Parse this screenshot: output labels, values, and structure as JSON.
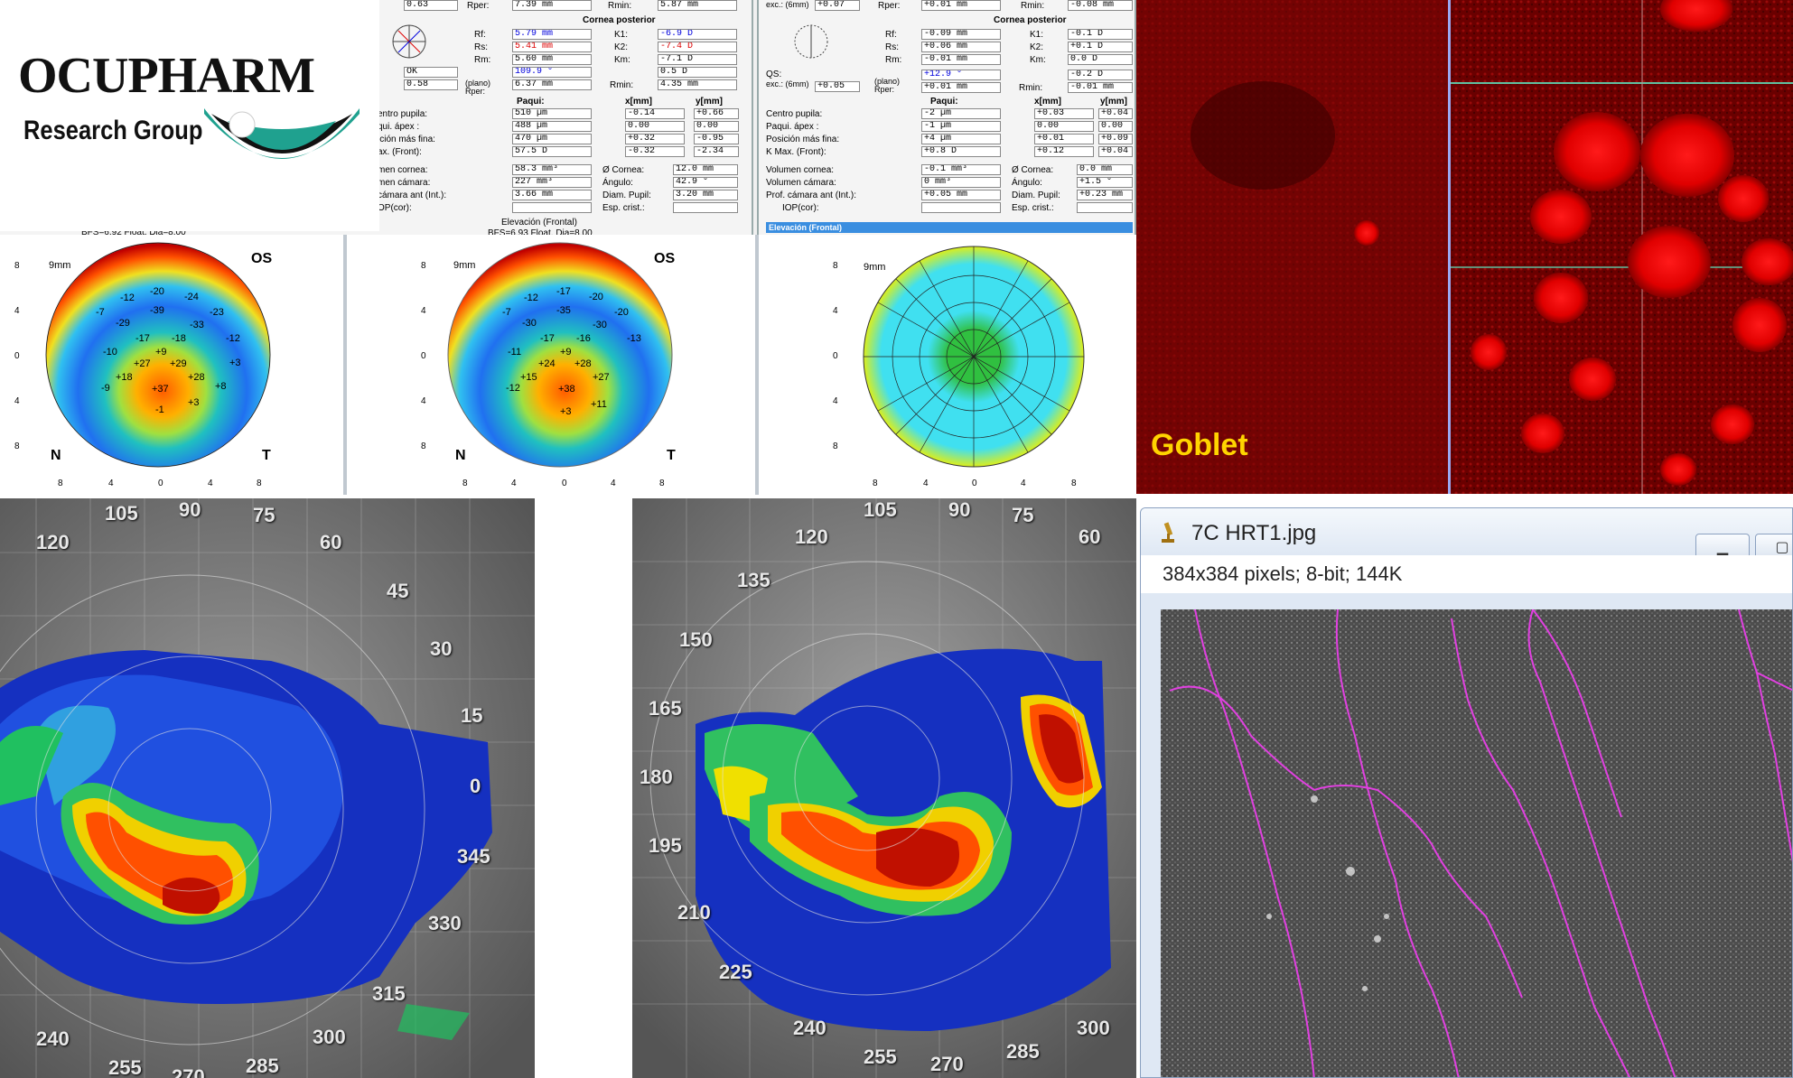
{
  "logo": {
    "name": "OCUPHARM",
    "subtitle": "Research Group"
  },
  "topo": {
    "panel1": {
      "rows_top": [
        [
          "0.63",
          "Rper:",
          "7.39 mm",
          "Rmin:",
          "5.87 mm"
        ]
      ],
      "section": "Cornea posterior",
      "rows": [
        [
          "Rf:",
          "5.79 mm",
          "K1:",
          "-6.9 D"
        ],
        [
          "Rs:",
          "5.41 mm",
          "K2:",
          "-7.4 D"
        ],
        [
          "Rm:",
          "5.60 mm",
          "Km:",
          "-7.1 D"
        ],
        [
          "",
          "OK",
          "",
          ""
        ],
        [
          "",
          "109.9 °",
          "",
          "0.5 D"
        ],
        [
          "(plano) Rper:",
          "6.37 mm",
          "Rmin:",
          "4.35 mm"
        ]
      ],
      "qs_label": "0.58",
      "paqui_hdr": "Paqui:",
      "x_hdr": "x[mm]",
      "y_hdr": "y[mm]",
      "paqui_rows": [
        [
          "entro pupila:",
          "510 µm",
          "-0.14",
          "+0.66"
        ],
        [
          "qui. ápex :",
          "488 µm",
          "0.00",
          "0.00"
        ],
        [
          "ición más fina:",
          "470 µm",
          "+0.32",
          "-0.95"
        ],
        [
          "ax. (Front):",
          "57.5 D",
          "-0.32",
          "-2.34"
        ]
      ],
      "vol_rows": [
        [
          "men cornea:",
          "58.3 mm³",
          "Ø Cornea:",
          "12.0 mm"
        ],
        [
          "men cámara:",
          "227 mm³",
          "Ángulo:",
          "42.9 °"
        ],
        [
          "cámara ant (Int.):",
          "3.66 mm",
          "Diam. Pupil:",
          "3.20 mm"
        ],
        [
          "OP(cor):",
          "",
          "Esp. crist.:",
          ""
        ]
      ],
      "bfs1": "BFS=6.92 Float, Dia=8.00",
      "elev_title": "Elevación (Frontal)",
      "bfs2": "BFS=6.93 Float, Dia=8.00"
    },
    "panel2": {
      "rows_top": [
        [
          "exc.: (6mm)",
          "+0.07",
          "Rper:",
          "+0.01 mm",
          "Rmin:",
          "-0.08 mm"
        ]
      ],
      "section": "Cornea posterior",
      "rows": [
        [
          "Rf:",
          "-0.09 mm",
          "K1:",
          "-0.1 D"
        ],
        [
          "Rs:",
          "+0.06 mm",
          "K2:",
          "+0.1 D"
        ],
        [
          "Rm:",
          "-0.01 mm",
          "Km:",
          "0.0 D"
        ],
        [
          "",
          "",
          "",
          "-0.2 D"
        ],
        [
          "(plano) Rper:",
          "+0.01 mm",
          "Rmin:",
          "-0.01 mm"
        ]
      ],
      "qs": "QS:",
      "exc": "exc.: (6mm)",
      "exc_val": "+0.05",
      "qs_val": "+12.9 °",
      "paqui_hdr": "Paqui:",
      "x_hdr": "x[mm]",
      "y_hdr": "y[mm]",
      "paqui_rows": [
        [
          "Centro pupila:",
          "-2 µm",
          "+0.03",
          "+0.04"
        ],
        [
          "Paqui. ápex :",
          "-1 µm",
          "0.00",
          "0.00"
        ],
        [
          "Posición más fina:",
          "+4 µm",
          "+0.01",
          "+0.09"
        ],
        [
          "K Max. (Front):",
          "+0.8 D",
          "+0.12",
          "+0.04"
        ]
      ],
      "vol_rows": [
        [
          "Volumen cornea:",
          "-0.1 mm³",
          "Ø Cornea:",
          "0.0 mm"
        ],
        [
          "Volumen cámara:",
          "0 mm³",
          "Ángulo:",
          "+1.5 °"
        ],
        [
          "Prof. cámara ant (Int.):",
          "+0.05 mm",
          "Diam. Pupil:",
          "+0.23 mm"
        ],
        [
          "IOP(cor):",
          "",
          "Esp. crist.:",
          ""
        ]
      ],
      "elev_tab": "Elevación (Frontal)"
    },
    "map1": {
      "os": "OS",
      "mm": "9mm",
      "n": "N",
      "t": "T",
      "values": [
        "-20",
        "-24",
        "-12",
        "-39",
        "-23",
        "-7",
        "-29",
        "-33",
        "-17",
        "-18",
        "-12",
        "-10",
        "+9",
        "+3",
        "+27",
        "+29",
        "+18",
        "+28",
        "-9",
        "+37",
        "+8",
        "-1",
        "+3"
      ]
    },
    "map2": {
      "os": "OS",
      "mm": "9mm",
      "n": "N",
      "t": "T",
      "values": [
        "-17",
        "-20",
        "-12",
        "-35",
        "-20",
        "-7",
        "-30",
        "-30",
        "-17",
        "-16",
        "-13",
        "-11",
        "+9",
        "+24",
        "+28",
        "+15",
        "+38",
        "+27",
        "-12",
        "+3",
        "+11"
      ]
    },
    "map3": {
      "mm": "9mm"
    },
    "axis": [
      "8",
      "4",
      "0",
      "4",
      "8"
    ],
    "degrees": [
      "90 °",
      "120 °",
      "60 °",
      "150 °",
      "30 °",
      "180 °",
      "0 °",
      "210 °",
      "330 °",
      "240 °",
      "300 °",
      "270 °"
    ]
  },
  "confocal": {
    "label": "Goblet"
  },
  "oct_left": {
    "labels": [
      "105",
      "90",
      "75",
      "120",
      "60",
      "45",
      "30",
      "15",
      "0",
      "345",
      "330",
      "315",
      "300",
      "285",
      "270",
      "255",
      "240"
    ]
  },
  "oct_right": {
    "labels": [
      "105",
      "90",
      "75",
      "120",
      "60",
      "135",
      "150",
      "165",
      "180",
      "195",
      "210",
      "225",
      "240",
      "255",
      "270",
      "285",
      "300"
    ]
  },
  "imagej": {
    "title": "7C HRT1.jpg",
    "info": "384x384 pixels; 8-bit; 144K",
    "min_btn": "▁",
    "max_btn": "▢"
  },
  "colors": {
    "red": "#e00000",
    "teal": "#1fa18f",
    "pink": "#e040e0"
  }
}
